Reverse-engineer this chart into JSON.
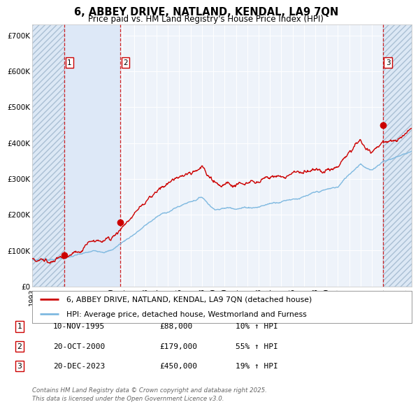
{
  "title_line1": "6, ABBEY DRIVE, NATLAND, KENDAL, LA9 7QN",
  "title_line2": "Price paid vs. HM Land Registry's House Price Index (HPI)",
  "ylim": [
    0,
    730000
  ],
  "yticks": [
    0,
    100000,
    200000,
    300000,
    400000,
    500000,
    600000,
    700000
  ],
  "ytick_labels": [
    "£0",
    "£100K",
    "£200K",
    "£300K",
    "£400K",
    "£500K",
    "£600K",
    "£700K"
  ],
  "xlim_start": 1993.0,
  "xlim_end": 2026.5,
  "xtick_years": [
    1993,
    1994,
    1995,
    1996,
    1997,
    1998,
    1999,
    2000,
    2001,
    2002,
    2003,
    2004,
    2005,
    2006,
    2007,
    2008,
    2009,
    2010,
    2011,
    2012,
    2013,
    2014,
    2015,
    2016,
    2017,
    2018,
    2019,
    2020,
    2021,
    2022,
    2023,
    2024,
    2025,
    2026
  ],
  "sale_dates": [
    1995.86,
    2000.8,
    2023.97
  ],
  "sale_prices": [
    88000,
    179000,
    450000
  ],
  "sale_labels": [
    "1",
    "2",
    "3"
  ],
  "hpi_color": "#7fb9e0",
  "price_color": "#cc0000",
  "background_color": "#ffffff",
  "plot_bg_color": "#eef3fa",
  "legend_line1": "6, ABBEY DRIVE, NATLAND, KENDAL, LA9 7QN (detached house)",
  "legend_line2": "HPI: Average price, detached house, Westmorland and Furness",
  "table_entries": [
    {
      "num": "1",
      "date": "10-NOV-1995",
      "price": "£88,000",
      "hpi": "10% ↑ HPI"
    },
    {
      "num": "2",
      "date": "20-OCT-2000",
      "price": "£179,000",
      "hpi": "55% ↑ HPI"
    },
    {
      "num": "3",
      "date": "20-DEC-2023",
      "price": "£450,000",
      "hpi": "19% ↑ HPI"
    }
  ],
  "footer": "Contains HM Land Registry data © Crown copyright and database right 2025.\nThis data is licensed under the Open Government Licence v3.0."
}
